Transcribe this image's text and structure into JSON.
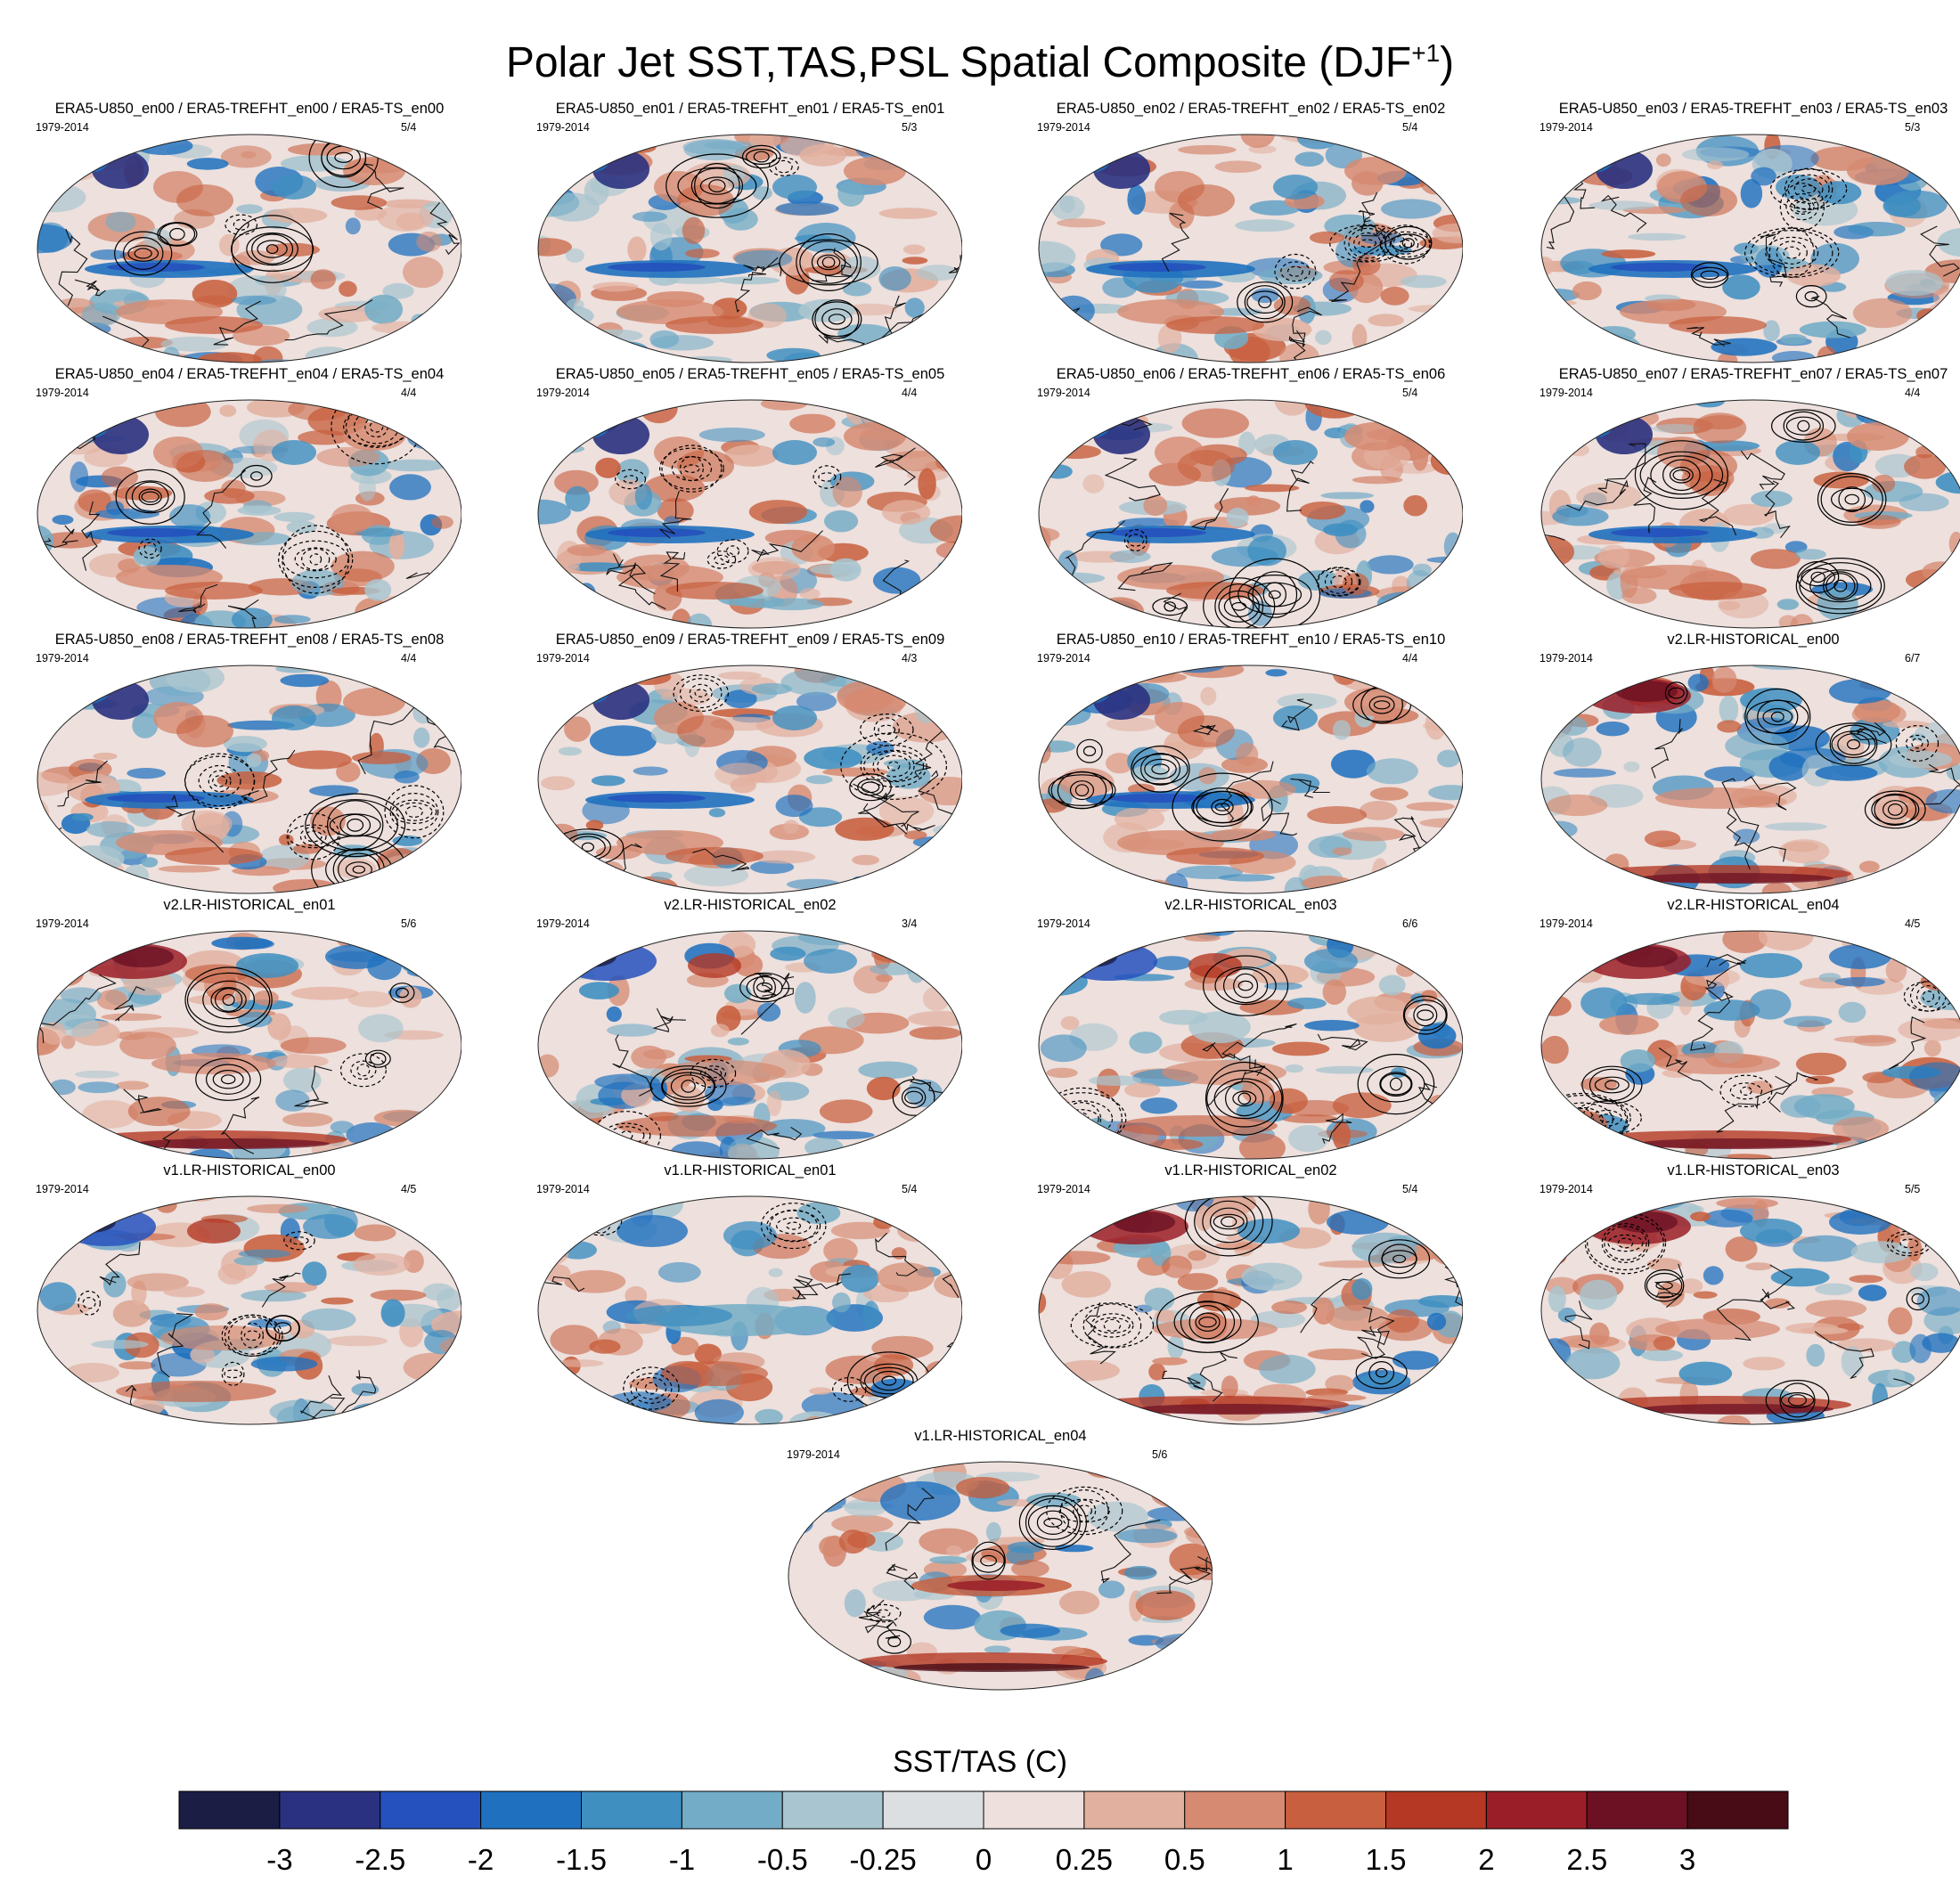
{
  "figure": {
    "title": "Polar Jet SST,TAS,PSL Spatial Composite (DJF",
    "title_superscript": "+1",
    "title_close": ")"
  },
  "chart_data": {
    "type": "heatmap",
    "description_kind": "map composite panels with SST/TAS shading and PSL contours",
    "panels": [
      {
        "title": "ERA5-U850_en00 / ERA5-TREFHT_en00 / ERA5-TS_en00",
        "period": "1979-2014",
        "count": "5/4",
        "style": "era5"
      },
      {
        "title": "ERA5-U850_en01 / ERA5-TREFHT_en01 / ERA5-TS_en01",
        "period": "1979-2014",
        "count": "5/3",
        "style": "era5"
      },
      {
        "title": "ERA5-U850_en02 / ERA5-TREFHT_en02 / ERA5-TS_en02",
        "period": "1979-2014",
        "count": "5/4",
        "style": "era5"
      },
      {
        "title": "ERA5-U850_en03 / ERA5-TREFHT_en03 / ERA5-TS_en03",
        "period": "1979-2014",
        "count": "5/3",
        "style": "era5"
      },
      {
        "title": "ERA5-U850_en04 / ERA5-TREFHT_en04 / ERA5-TS_en04",
        "period": "1979-2014",
        "count": "4/4",
        "style": "era5"
      },
      {
        "title": "ERA5-U850_en05 / ERA5-TREFHT_en05 / ERA5-TS_en05",
        "period": "1979-2014",
        "count": "4/4",
        "style": "era5"
      },
      {
        "title": "ERA5-U850_en06 / ERA5-TREFHT_en06 / ERA5-TS_en06",
        "period": "1979-2014",
        "count": "5/4",
        "style": "era5"
      },
      {
        "title": "ERA5-U850_en07 / ERA5-TREFHT_en07 / ERA5-TS_en07",
        "period": "1979-2014",
        "count": "4/4",
        "style": "era5"
      },
      {
        "title": "ERA5-U850_en08 / ERA5-TREFHT_en08 / ERA5-TS_en08",
        "period": "1979-2014",
        "count": "4/4",
        "style": "era5"
      },
      {
        "title": "ERA5-U850_en09 / ERA5-TREFHT_en09 / ERA5-TS_en09",
        "period": "1979-2014",
        "count": "4/3",
        "style": "era5"
      },
      {
        "title": "ERA5-U850_en10 / ERA5-TREFHT_en10 / ERA5-TS_en10",
        "period": "1979-2014",
        "count": "4/4",
        "style": "era5"
      },
      {
        "title": "v2.LR-HISTORICAL_en00",
        "period": "1979-2014",
        "count": "6/7",
        "style": "warmnorth"
      },
      {
        "title": "v2.LR-HISTORICAL_en01",
        "period": "1979-2014",
        "count": "5/6",
        "style": "warmnorth"
      },
      {
        "title": "v2.LR-HISTORICAL_en02",
        "period": "1979-2014",
        "count": "3/4",
        "style": "coldnorth"
      },
      {
        "title": "v2.LR-HISTORICAL_en03",
        "period": "1979-2014",
        "count": "6/6",
        "style": "coldnorth"
      },
      {
        "title": "v2.LR-HISTORICAL_en04",
        "period": "1979-2014",
        "count": "4/5",
        "style": "warmnorth"
      },
      {
        "title": "v1.LR-HISTORICAL_en00",
        "period": "1979-2014",
        "count": "4/5",
        "style": "coldnorth"
      },
      {
        "title": "v1.LR-HISTORICAL_en01",
        "period": "1979-2014",
        "count": "5/4",
        "style": "cooltropic"
      },
      {
        "title": "v1.LR-HISTORICAL_en02",
        "period": "1979-2014",
        "count": "5/4",
        "style": "warmnorth"
      },
      {
        "title": "v1.LR-HISTORICAL_en03",
        "period": "1979-2014",
        "count": "5/5",
        "style": "warmnorth"
      },
      {
        "title": "v1.LR-HISTORICAL_en04",
        "period": "1979-2014",
        "count": "5/6",
        "style": "warmtropic"
      }
    ],
    "colorbar": {
      "label": "SST/TAS (C)",
      "ticks": [
        "-3",
        "-2.5",
        "-2",
        "-1.5",
        "-1",
        "-0.5",
        "-0.25",
        "0",
        "0.25",
        "0.5",
        "1",
        "1.5",
        "2",
        "2.5",
        "3"
      ],
      "colors": [
        "#1b1d45",
        "#2a3180",
        "#2451bd",
        "#1f71bf",
        "#3f8fc1",
        "#73acc6",
        "#a9c5cf",
        "#dcdfe1",
        "#ede0dd",
        "#e2b09f",
        "#d68a71",
        "#c8603f",
        "#b43824",
        "#9a1e28",
        "#6c1123",
        "#470c16"
      ]
    }
  }
}
